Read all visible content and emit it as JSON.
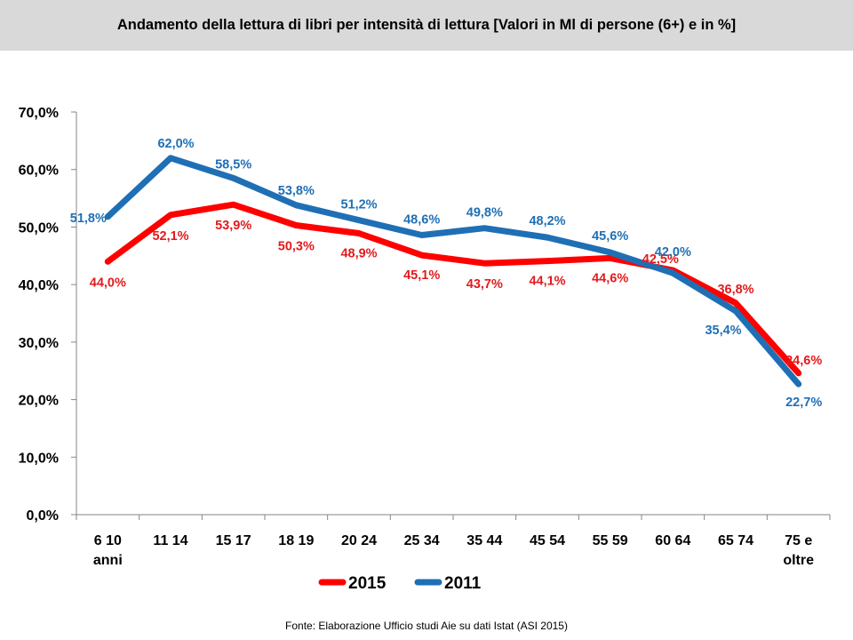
{
  "chart_data": {
    "type": "line",
    "title": "Andamento della lettura di libri per intensità di lettura [Valori in Ml di persone (6+) e in %]",
    "categories": [
      [
        "6 10",
        "anni"
      ],
      [
        "11 14"
      ],
      [
        "15 17"
      ],
      [
        "18 19"
      ],
      [
        "20 24"
      ],
      [
        "25 34"
      ],
      [
        "35 44"
      ],
      [
        "45 54"
      ],
      [
        "55 59"
      ],
      [
        "60 64"
      ],
      [
        "65 74"
      ],
      [
        "75 e",
        "oltre"
      ]
    ],
    "yticks": [
      "0,0%",
      "10,0%",
      "20,0%",
      "30,0%",
      "40,0%",
      "50,0%",
      "60,0%",
      "70,0%"
    ],
    "ylim": [
      0,
      70
    ],
    "grid": false,
    "legend": "bottom",
    "series": [
      {
        "name": "2015",
        "color": "#ff0000",
        "label_color": "#e31a1c",
        "values": [
          44.0,
          52.1,
          53.9,
          50.3,
          48.9,
          45.1,
          43.7,
          44.1,
          44.6,
          42.5,
          36.8,
          24.6
        ],
        "labels": [
          "44,0%",
          "52,1%",
          "53,9%",
          "50,3%",
          "48,9%",
          "45,1%",
          "43,7%",
          "44,1%",
          "44,6%",
          "42,5%",
          "36,8%",
          "24,6%"
        ]
      },
      {
        "name": "2011",
        "color": "#1f6fb5",
        "label_color": "#1f6fb5",
        "values": [
          51.8,
          62.0,
          58.5,
          53.8,
          51.2,
          48.6,
          49.8,
          48.2,
          45.6,
          42.0,
          35.4,
          22.7
        ],
        "labels": [
          "51,8%",
          "62,0%",
          "58,5%",
          "53,8%",
          "51,2%",
          "48,6%",
          "49,8%",
          "48,2%",
          "45,6%",
          "42,0%",
          "35,4%",
          "22,7%"
        ]
      }
    ],
    "source": "Fonte: Elaborazione Ufficio studi Aie su dati Istat (ASI 2015)"
  }
}
